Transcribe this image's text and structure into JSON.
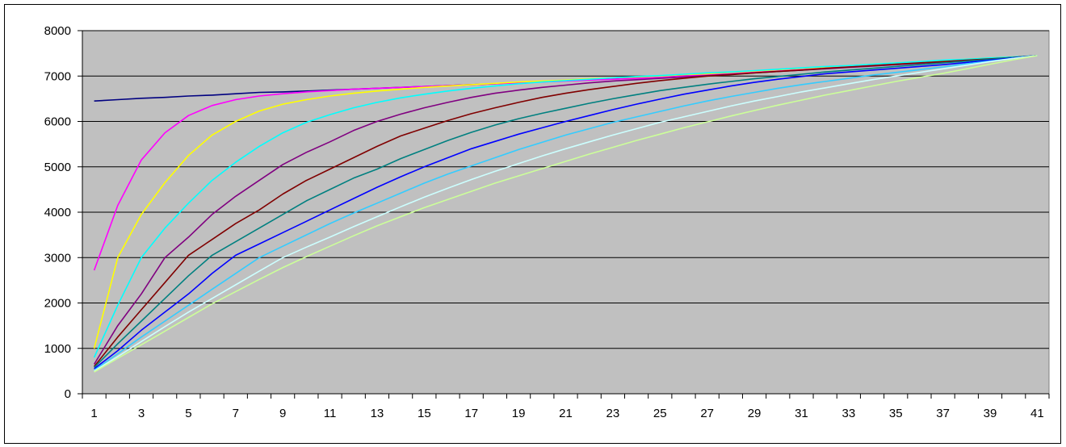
{
  "chart_data": {
    "type": "line",
    "title": "",
    "xlabel": "",
    "ylabel": "",
    "ylim": [
      0,
      8000
    ],
    "yticks": [
      0,
      1000,
      2000,
      3000,
      4000,
      5000,
      6000,
      7000,
      8000
    ],
    "x": [
      1,
      2,
      3,
      4,
      5,
      6,
      7,
      8,
      9,
      10,
      11,
      12,
      13,
      14,
      15,
      16,
      17,
      18,
      19,
      20,
      21,
      22,
      23,
      24,
      25,
      26,
      27,
      28,
      29,
      30,
      31,
      32,
      33,
      34,
      35,
      36,
      37,
      38,
      39,
      40,
      41
    ],
    "xtick_labels": [
      "1",
      "3",
      "5",
      "7",
      "9",
      "11",
      "13",
      "15",
      "17",
      "19",
      "21",
      "23",
      "25",
      "27",
      "29",
      "31",
      "33",
      "35",
      "37",
      "39",
      "41"
    ],
    "grid": true,
    "plot_background": "#C0C0C0",
    "series": [
      {
        "color": "#000080",
        "values": [
          6450,
          6480,
          6510,
          6530,
          6560,
          6580,
          6610,
          6640,
          6650,
          6670,
          6690,
          6710,
          6730,
          6750,
          6770,
          6790,
          6810,
          6830,
          6860,
          6880,
          6900,
          6920,
          6950,
          6970,
          7000,
          7020,
          7040,
          7070,
          7090,
          7120,
          7150,
          7170,
          7200,
          7230,
          7260,
          7290,
          7320,
          7350,
          7380,
          7410,
          7450
        ]
      },
      {
        "color": "#FF00FF",
        "values": [
          2720,
          4150,
          5150,
          5750,
          6130,
          6350,
          6480,
          6560,
          6610,
          6650,
          6680,
          6710,
          6730,
          6750,
          6770,
          6790,
          6810,
          6830,
          6850,
          6870,
          6890,
          6910,
          6930,
          6950,
          6970,
          7000,
          7030,
          7060,
          7090,
          7120,
          7150,
          7180,
          7210,
          7240,
          7270,
          7300,
          7330,
          7360,
          7390,
          7420,
          7450
        ]
      },
      {
        "color": "#FFFF00",
        "values": [
          1000,
          3000,
          3950,
          4650,
          5250,
          5700,
          6000,
          6230,
          6380,
          6480,
          6560,
          6620,
          6670,
          6710,
          6750,
          6780,
          6810,
          6840,
          6870,
          6890,
          6910,
          6940,
          6960,
          6980,
          7000,
          7030,
          7050,
          7080,
          7110,
          7140,
          7170,
          7200,
          7230,
          7260,
          7290,
          7320,
          7340,
          7370,
          7400,
          7420,
          7450
        ]
      },
      {
        "color": "#00FFFF",
        "values": [
          800,
          1950,
          3000,
          3650,
          4200,
          4700,
          5100,
          5450,
          5750,
          5980,
          6150,
          6300,
          6420,
          6520,
          6600,
          6670,
          6730,
          6780,
          6830,
          6870,
          6900,
          6930,
          6960,
          6990,
          7010,
          7040,
          7070,
          7090,
          7120,
          7150,
          7180,
          7210,
          7230,
          7260,
          7290,
          7320,
          7350,
          7370,
          7400,
          7420,
          7450
        ]
      },
      {
        "color": "#800080",
        "values": [
          650,
          1500,
          2200,
          3000,
          3450,
          3950,
          4350,
          4700,
          5050,
          5320,
          5550,
          5800,
          6000,
          6160,
          6300,
          6420,
          6530,
          6620,
          6690,
          6750,
          6800,
          6850,
          6890,
          6920,
          6950,
          6980,
          7010,
          7040,
          7070,
          7100,
          7130,
          7160,
          7190,
          7220,
          7250,
          7280,
          7310,
          7340,
          7370,
          7410,
          7450
        ]
      },
      {
        "color": "#800000",
        "values": [
          600,
          1250,
          1850,
          2450,
          3050,
          3400,
          3750,
          4050,
          4400,
          4700,
          4950,
          5200,
          5450,
          5680,
          5850,
          6020,
          6170,
          6300,
          6420,
          6530,
          6620,
          6700,
          6770,
          6840,
          6900,
          6950,
          7000,
          7030,
          7070,
          7100,
          7130,
          7170,
          7200,
          7230,
          7260,
          7290,
          7320,
          7350,
          7380,
          7410,
          7450
        ]
      },
      {
        "color": "#008080",
        "values": [
          580,
          1100,
          1600,
          2100,
          2600,
          3050,
          3350,
          3650,
          3950,
          4250,
          4500,
          4750,
          4950,
          5180,
          5380,
          5580,
          5760,
          5920,
          6060,
          6180,
          6290,
          6400,
          6500,
          6590,
          6680,
          6750,
          6820,
          6880,
          6940,
          6990,
          7040,
          7090,
          7130,
          7170,
          7210,
          7250,
          7290,
          7330,
          7370,
          7410,
          7450
        ]
      },
      {
        "color": "#0000FF",
        "values": [
          550,
          950,
          1400,
          1800,
          2200,
          2650,
          3050,
          3300,
          3550,
          3800,
          4050,
          4300,
          4550,
          4780,
          5000,
          5200,
          5400,
          5560,
          5720,
          5860,
          6000,
          6130,
          6260,
          6380,
          6490,
          6600,
          6690,
          6780,
          6860,
          6930,
          6990,
          7050,
          7090,
          7130,
          7170,
          7210,
          7250,
          7300,
          7350,
          7400,
          7450
        ]
      },
      {
        "color": "#33CCFF",
        "values": [
          520,
          880,
          1250,
          1600,
          1950,
          2300,
          2650,
          3000,
          3250,
          3500,
          3750,
          3980,
          4200,
          4420,
          4640,
          4840,
          5020,
          5200,
          5380,
          5540,
          5700,
          5840,
          5980,
          6100,
          6220,
          6340,
          6450,
          6550,
          6640,
          6730,
          6810,
          6880,
          6950,
          7020,
          7080,
          7140,
          7200,
          7270,
          7330,
          7390,
          7450
        ]
      },
      {
        "color": "#CCFFFF",
        "values": [
          500,
          820,
          1150,
          1480,
          1800,
          2100,
          2400,
          2700,
          3000,
          3230,
          3450,
          3680,
          3900,
          4120,
          4330,
          4530,
          4720,
          4900,
          5070,
          5240,
          5400,
          5550,
          5700,
          5840,
          5980,
          6100,
          6220,
          6340,
          6450,
          6550,
          6650,
          6740,
          6830,
          6920,
          7000,
          7080,
          7160,
          7240,
          7320,
          7390,
          7450
        ]
      },
      {
        "color": "#CCFF99",
        "values": [
          480,
          780,
          1080,
          1380,
          1680,
          1980,
          2250,
          2520,
          2780,
          3020,
          3250,
          3480,
          3700,
          3900,
          4100,
          4280,
          4460,
          4640,
          4800,
          4960,
          5120,
          5280,
          5430,
          5580,
          5720,
          5860,
          5990,
          6120,
          6240,
          6360,
          6470,
          6580,
          6680,
          6780,
          6880,
          6970,
          7060,
          7160,
          7260,
          7360,
          7450
        ]
      }
    ]
  }
}
